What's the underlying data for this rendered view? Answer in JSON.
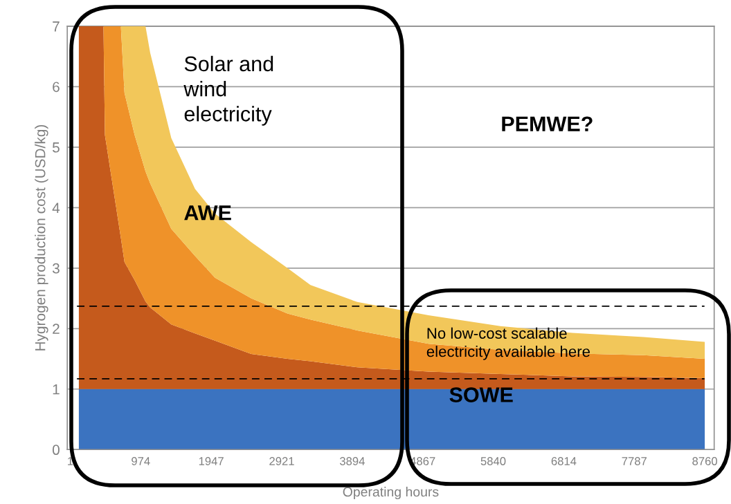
{
  "chart_data": {
    "type": "area",
    "stacked": true,
    "xlabel": "Operating hours",
    "ylabel": "Hygrogen production cost (USD/kg)",
    "x": [
      120,
      460,
      480,
      700,
      750,
      890,
      1040,
      1105,
      1396,
      1724,
      2000,
      2500,
      3000,
      3317,
      3963,
      4946,
      5940,
      6933,
      7917,
      8760
    ],
    "series": [
      {
        "color": "#3b73c0",
        "values": [
          1,
          1,
          1,
          1,
          1,
          1,
          1,
          1,
          1,
          1,
          1,
          1,
          1,
          1,
          1,
          1,
          1,
          1,
          1,
          1
        ]
      },
      {
        "color": "#c55a1c",
        "values": [
          6,
          6,
          4.2,
          2.5,
          2.1,
          1.8,
          1.45,
          1.35,
          1.07,
          0.92,
          0.8,
          0.58,
          0.5,
          0.46,
          0.36,
          0.29,
          0.25,
          0.21,
          0.2,
          0.18
        ]
      },
      {
        "color": "#ef9229",
        "values": [
          0,
          0,
          1.8,
          3.5,
          2.8,
          2.4,
          2.15,
          2.05,
          1.58,
          1.28,
          1.04,
          0.92,
          0.75,
          0.69,
          0.61,
          0.46,
          0.4,
          0.38,
          0.36,
          0.32
        ]
      },
      {
        "color": "#f2c75a",
        "values": [
          0,
          0,
          0,
          0,
          1.1,
          1.8,
          2.4,
          2.16,
          1.5,
          1.11,
          1.06,
          0.93,
          0.75,
          0.57,
          0.47,
          0.47,
          0.39,
          0.34,
          0.3,
          0.28
        ]
      }
    ],
    "xlim": [
      -40,
      8890
    ],
    "xticks": [
      1,
      974,
      1947,
      2921,
      3894,
      4867,
      5840,
      6814,
      7787,
      8760
    ],
    "ylim": [
      0,
      7
    ],
    "yticks": [
      0,
      1,
      2,
      3,
      4,
      5,
      6,
      7
    ],
    "grid": "y",
    "legend": false,
    "ref_lines": [
      {
        "axis": "y",
        "value": 1.17,
        "line_style": "dashed",
        "color": "#000000"
      },
      {
        "axis": "y",
        "value": 2.37,
        "line_style": "dashed",
        "color": "#000000"
      }
    ],
    "annotations": [
      "Solar and\nwind\nelectricity",
      "AWE",
      "PEMWE?",
      "No low-cost scalable\nelectricity available here",
      "SOWE"
    ]
  }
}
